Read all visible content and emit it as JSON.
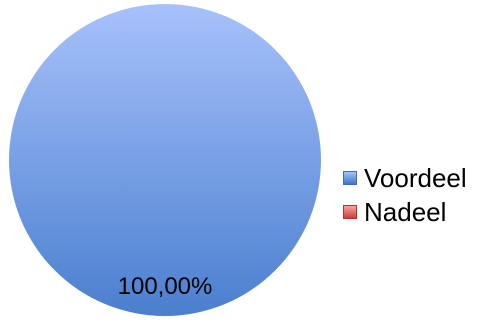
{
  "chart_data": {
    "type": "pie",
    "series": [
      {
        "name": "Voordeel",
        "value": 100.0,
        "label": "100,00%",
        "color": "#5b8fd8"
      },
      {
        "name": "Nadeel",
        "value": 0.0,
        "label": "",
        "color": "#d9534f"
      }
    ],
    "legend_position": "right"
  }
}
